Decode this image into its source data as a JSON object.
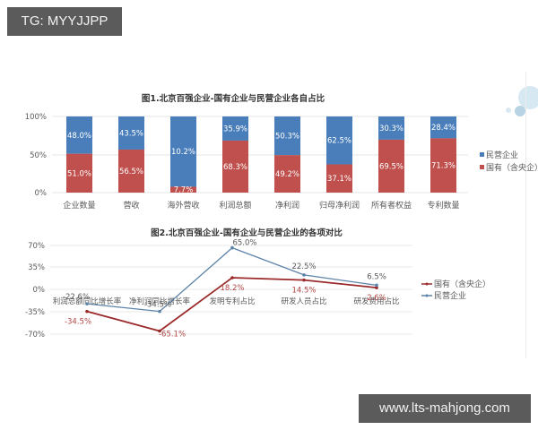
{
  "watermarks": {
    "top": "TG: MYYJJPP",
    "bottom": "www.lts-mahjong.com"
  },
  "colors": {
    "private": "#4a7ebb",
    "state": "#c0504d",
    "line_private": "#5b82a8",
    "line_state": "#9b2a2a",
    "grid": "#e6e6e6",
    "text": "#595959"
  },
  "chart_data": [
    {
      "type": "bar",
      "stacked": true,
      "title": "图1.北京百强企业-国有企业与民营企业各自占比",
      "categories": [
        "企业数量",
        "营收",
        "海外营收",
        "利润总额",
        "净利润",
        "归母净利润",
        "所有者权益",
        "专利数量"
      ],
      "series": [
        {
          "name": "国有（含央企）",
          "values": [
            51.0,
            56.5,
            7.7,
            68.3,
            49.2,
            37.1,
            69.5,
            71.3
          ],
          "labels": [
            "51.0%",
            "56.5%",
            "7.7%",
            "68.3%",
            "49.2%",
            "37.1%",
            "69.5%",
            "71.3%"
          ]
        },
        {
          "name": "民营企业",
          "values": [
            48.0,
            43.5,
            10.2,
            35.9,
            50.3,
            62.5,
            30.3,
            28.4
          ],
          "labels": [
            "48.0%",
            "43.5%",
            "10.2%",
            "35.9%",
            "50.3%",
            "62.5%",
            "30.3%",
            "28.4%"
          ]
        }
      ],
      "yticks": [
        "0%",
        "50%",
        "100%"
      ],
      "ylim": [
        0,
        100
      ],
      "grid": true,
      "legend": [
        "民营企业",
        "国有（含央企）"
      ],
      "legend_position": "right"
    },
    {
      "type": "line",
      "title": "图2.北京百强企业-国有企业与民营企业的各项对比",
      "categories": [
        "利润总额同比增长率",
        "净利润同比增长率",
        "发明专利占比",
        "研发人员占比",
        "研发费用占比"
      ],
      "series": [
        {
          "name": "国有（含央企）",
          "values": [
            -34.5,
            -65.1,
            18.2,
            14.5,
            2.6
          ],
          "labels": [
            "-34.5%",
            "-65.1%",
            "18.2%",
            "14.5%",
            "2.6%"
          ]
        },
        {
          "name": "民营企业",
          "values": [
            -22.6,
            -34.5,
            65.0,
            22.5,
            6.5
          ],
          "labels": [
            "-22.6%",
            "-34.5%",
            "65.0%",
            "22.5%",
            "6.5%"
          ]
        }
      ],
      "yticks": [
        "70%",
        "35%",
        "0%",
        "-35%",
        "-70%"
      ],
      "ylim": [
        -70,
        70
      ],
      "grid": true,
      "legend": [
        "国有（含央企）",
        "民营企业"
      ],
      "legend_position": "right"
    }
  ]
}
